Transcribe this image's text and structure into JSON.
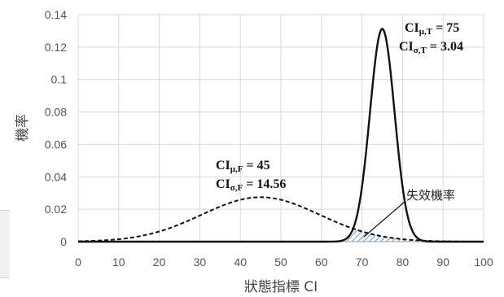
{
  "chart_data": {
    "type": "line",
    "xlabel": "狀態指標 CI",
    "ylabel": "機率",
    "xlim": [
      0,
      100
    ],
    "ylim": [
      0,
      0.14
    ],
    "x_ticks": [
      "0",
      "10",
      "20",
      "30",
      "40",
      "50",
      "60",
      "70",
      "80",
      "90",
      "100"
    ],
    "y_ticks": [
      "0",
      "0.02",
      "0.04",
      "0.06",
      "0.08",
      "0.1",
      "0.12",
      "0.14"
    ],
    "grid": true,
    "series": [
      {
        "style": "dashed",
        "mean": 45,
        "sd": 14.56,
        "x": [
          0,
          5,
          10,
          15,
          20,
          25,
          30,
          35,
          40,
          45,
          50,
          55,
          60,
          65,
          70,
          75,
          80,
          85,
          90,
          95,
          100
        ],
        "values": [
          3e-05,
          0.0001,
          0.0004,
          0.0008,
          0.0014,
          0.0031,
          0.0098,
          0.0136,
          0.0258,
          0.0274,
          0.0258,
          0.0216,
          0.0161,
          0.0104,
          0.0063,
          0.0034,
          0.0016,
          0.0006,
          0.0002,
          0.0001,
          1e-05
        ]
      },
      {
        "style": "solid",
        "mean": 75,
        "sd": 3.04,
        "x": [
          60,
          62,
          64,
          66,
          68,
          70,
          72,
          74,
          75,
          76,
          78,
          80,
          82,
          84,
          86,
          88,
          90
        ],
        "values": [
          0.0,
          0.0001,
          0.0017,
          0.0053,
          0.0092,
          0.0338,
          0.0808,
          0.1235,
          0.1312,
          0.1235,
          0.0808,
          0.0338,
          0.0092,
          0.0016,
          0.0002,
          0.0,
          0.0
        ]
      }
    ],
    "annotations": {
      "failure": {
        "line1": "CI",
        "line1_sub": "μ,F",
        "line1_rest": " = 45",
        "line2": "CI",
        "line2_sub": "σ,F",
        "line2_rest": " = 14.56"
      },
      "target": {
        "line1": "CI",
        "line1_sub": "μ,T",
        "line1_rest": " = 75",
        "line2": "CI",
        "line2_sub": "σ,T",
        "line2_rest": " = 3.04"
      },
      "callout": "失效機率"
    },
    "colors": {
      "curve": "#111111",
      "grid": "#d9d9d9",
      "axis": "#bfbfbf",
      "hatch": "#5b9bd5"
    }
  }
}
